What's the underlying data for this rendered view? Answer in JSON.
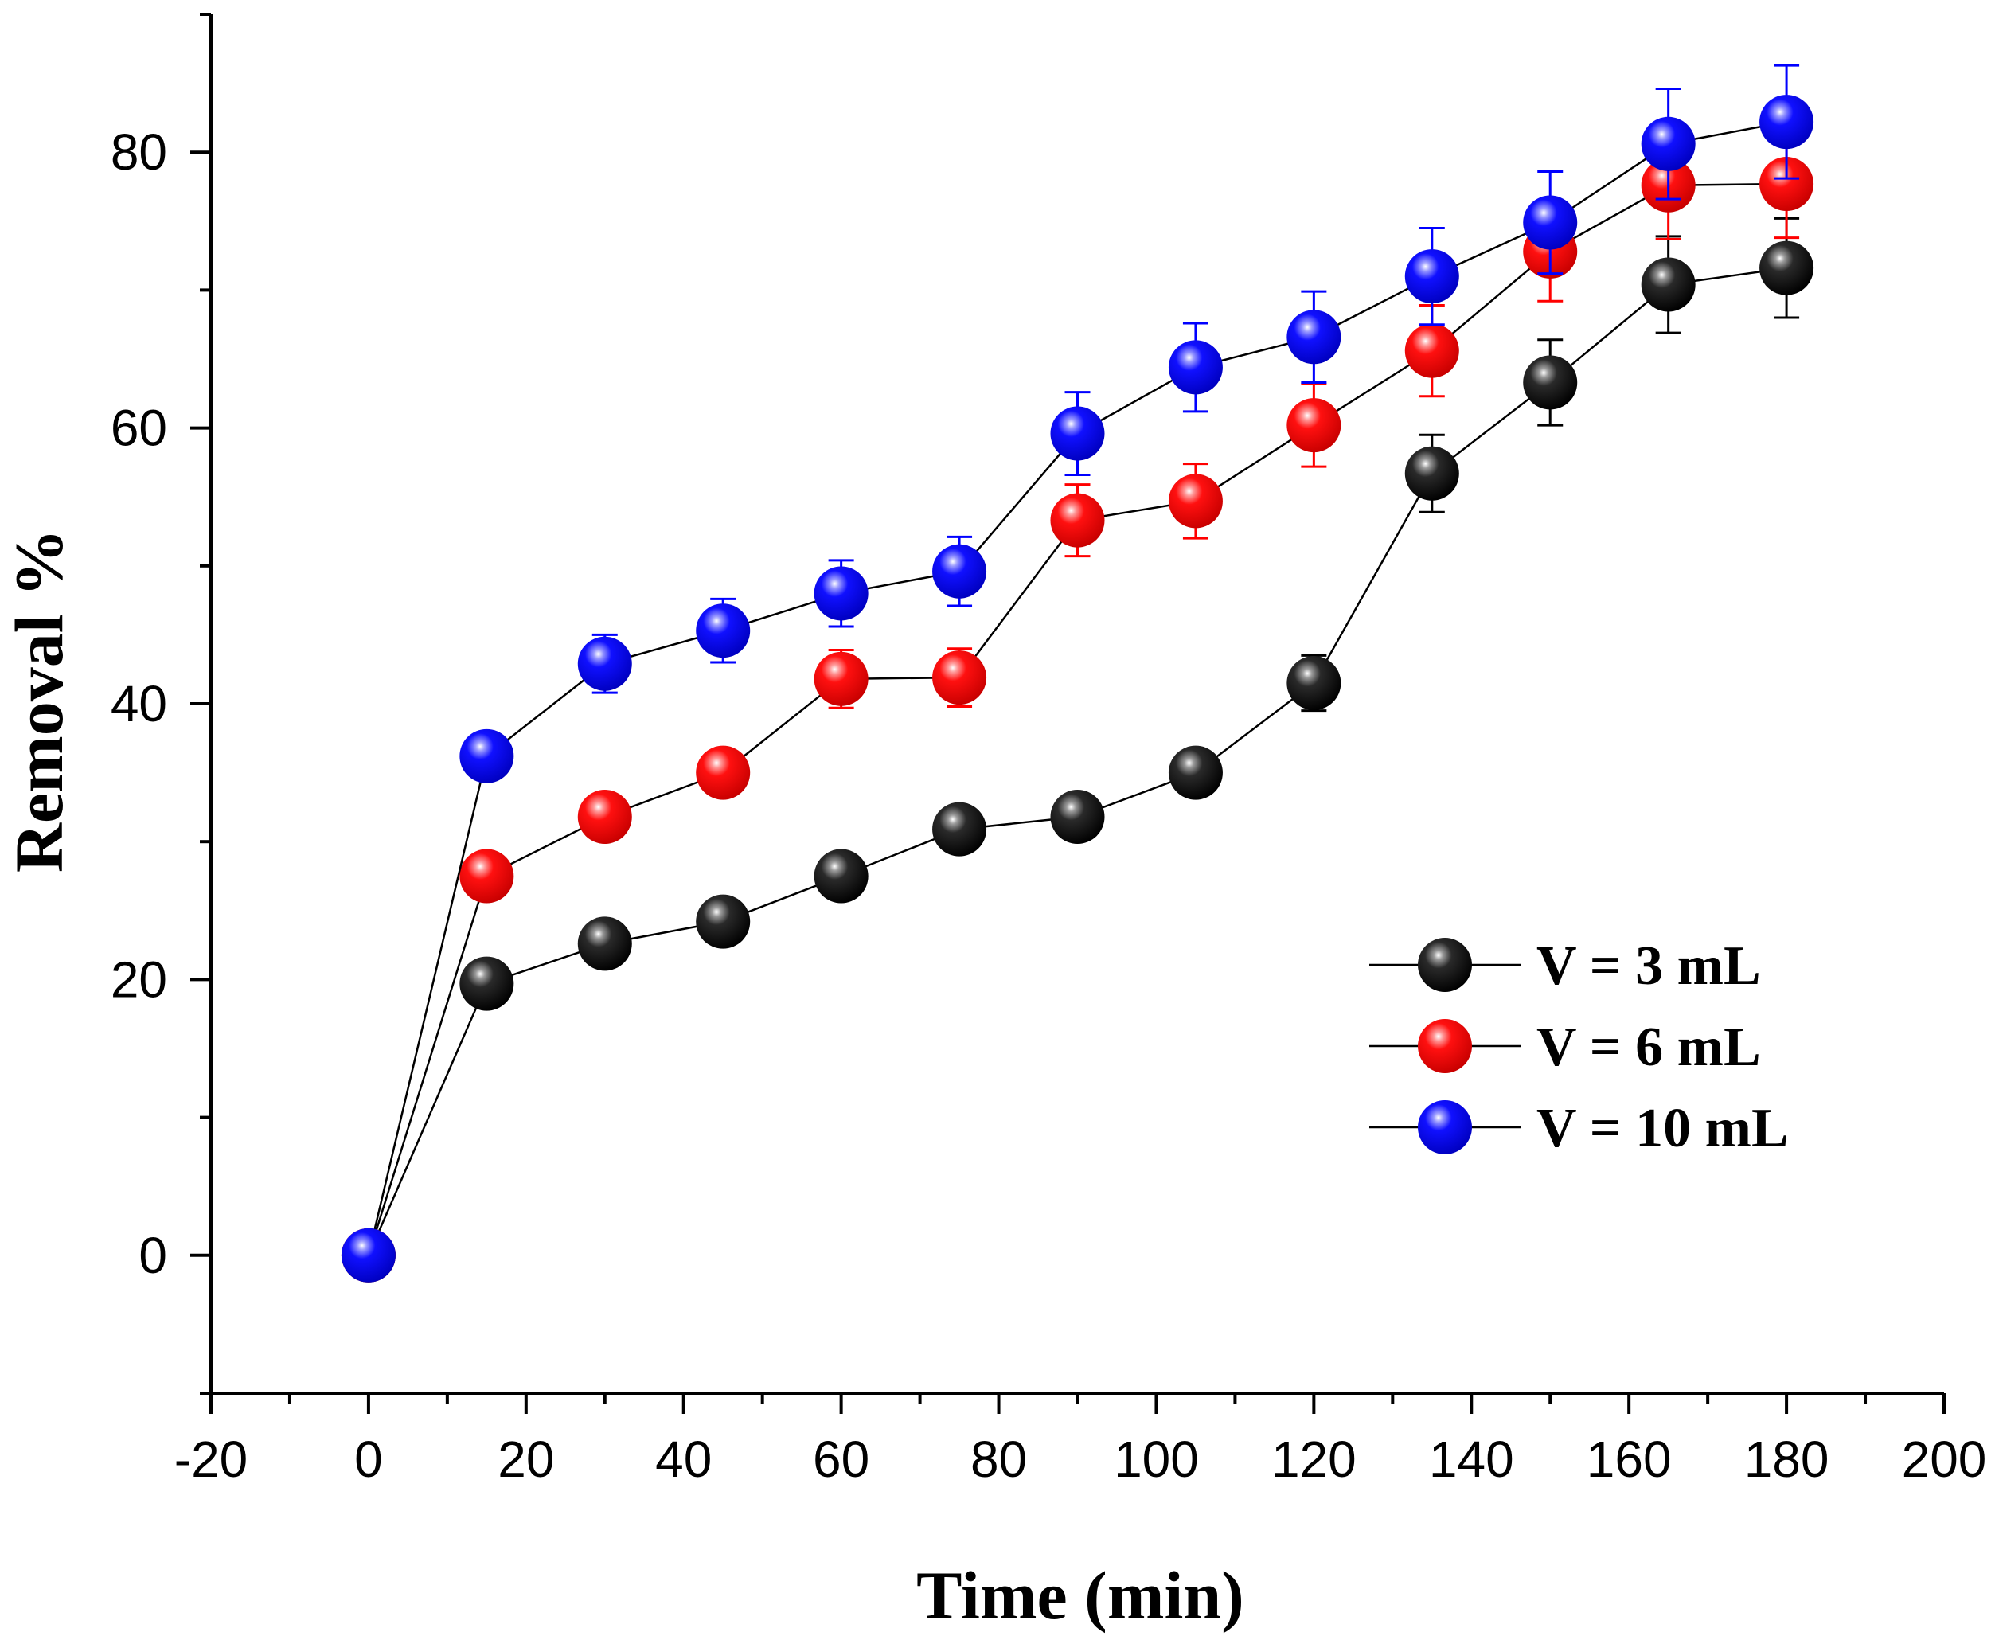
{
  "chart_data": {
    "type": "scatter",
    "xlabel": "Time (min)",
    "ylabel": "Removal %",
    "xlim": [
      -20,
      200
    ],
    "ylim": [
      -10,
      90
    ],
    "x_ticks": [
      -20,
      0,
      20,
      40,
      60,
      80,
      100,
      120,
      140,
      160,
      180,
      200
    ],
    "y_ticks": [
      0,
      20,
      40,
      60,
      80
    ],
    "legend_position": "right-middle",
    "marker": "sphere",
    "lines": true,
    "error_bars": true,
    "x": [
      0,
      15,
      30,
      45,
      60,
      75,
      90,
      105,
      120,
      135,
      150,
      165,
      180
    ],
    "series": [
      {
        "name": "V = 3 mL",
        "color": "#000000",
        "values": [
          0,
          19.7,
          22.6,
          24.2,
          27.5,
          30.9,
          31.8,
          35.0,
          41.5,
          56.7,
          63.3,
          70.4,
          71.6
        ],
        "errors": [
          0,
          0.8,
          0.8,
          0.9,
          1.0,
          1.0,
          1.0,
          1.2,
          2.0,
          2.8,
          3.1,
          3.5,
          3.6
        ]
      },
      {
        "name": "V = 6 mL",
        "color": "#ff0000",
        "values": [
          0,
          27.5,
          31.8,
          35.0,
          41.8,
          41.9,
          53.3,
          54.7,
          60.2,
          65.6,
          72.8,
          77.6,
          77.7
        ],
        "errors": [
          0,
          0.9,
          1.0,
          1.1,
          2.1,
          2.1,
          2.6,
          2.7,
          3.0,
          3.3,
          3.6,
          3.9,
          3.9
        ]
      },
      {
        "name": "V = 10 mL",
        "color": "#0000ff",
        "values": [
          0,
          36.2,
          42.9,
          45.3,
          48.0,
          49.6,
          59.6,
          64.4,
          66.6,
          71.0,
          74.9,
          80.6,
          82.2
        ],
        "errors": [
          0,
          0.5,
          2.1,
          2.3,
          2.4,
          2.5,
          3.0,
          3.2,
          3.3,
          3.5,
          3.7,
          4.0,
          4.1
        ]
      }
    ]
  }
}
